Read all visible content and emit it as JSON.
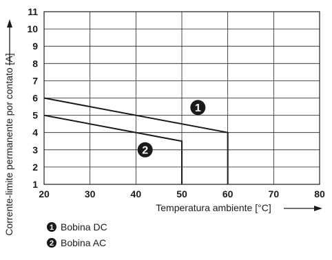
{
  "chart_data": {
    "type": "line",
    "xlabel": "Temperatura ambiente [°C]",
    "ylabel": "Corrente-limite permanente por contato [A]",
    "xlim": [
      20,
      80
    ],
    "ylim": [
      1,
      11
    ],
    "x_ticks": [
      20,
      30,
      40,
      50,
      60,
      70,
      80
    ],
    "y_ticks": [
      1,
      2,
      3,
      4,
      5,
      6,
      7,
      8,
      9,
      10,
      11
    ],
    "grid": true,
    "series": [
      {
        "name": "Bobina DC",
        "marker": "1",
        "x": [
          20,
          60,
          60
        ],
        "y": [
          6,
          4,
          1
        ]
      },
      {
        "name": "Bobina AC",
        "marker": "2",
        "x": [
          20,
          50,
          50
        ],
        "y": [
          5,
          3.5,
          1
        ]
      }
    ],
    "legend": [
      {
        "marker": "1",
        "label": "Bobina DC"
      },
      {
        "marker": "2",
        "label": "Bobina AC"
      }
    ],
    "colors": {
      "line": "#1a1a1a",
      "grid": "#1a1a1a",
      "marker_fill": "#1a1a1a"
    }
  }
}
